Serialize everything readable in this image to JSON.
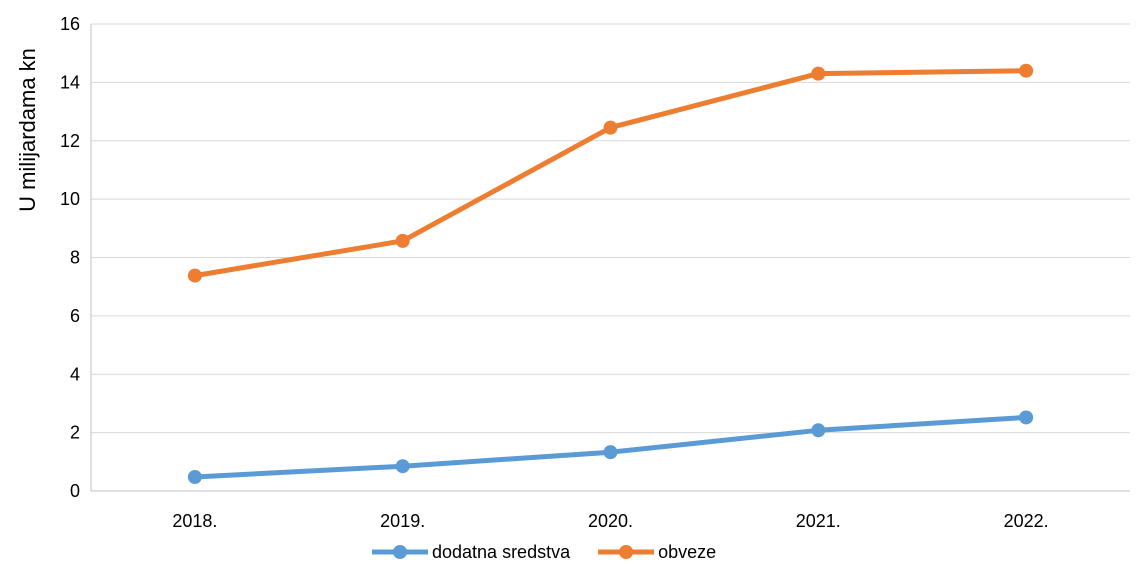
{
  "chart_data": {
    "type": "line",
    "categories": [
      "2018.",
      "2019.",
      "2020.",
      "2021.",
      "2022."
    ],
    "series": [
      {
        "name": "dodatna sredstva",
        "values": [
          0.48,
          0.85,
          1.33,
          2.08,
          2.52
        ],
        "color": "#5B9BD5"
      },
      {
        "name": "obveze",
        "values": [
          7.38,
          8.57,
          12.45,
          14.3,
          14.4
        ],
        "color": "#ED7D31"
      }
    ],
    "ylabel": "U milijardama kn",
    "ylim": [
      0,
      16
    ],
    "yticks": [
      "0",
      "2",
      "4",
      "6",
      "8",
      "10",
      "12",
      "14",
      "16"
    ],
    "grid": "horizontal",
    "legend_position": "bottom"
  }
}
